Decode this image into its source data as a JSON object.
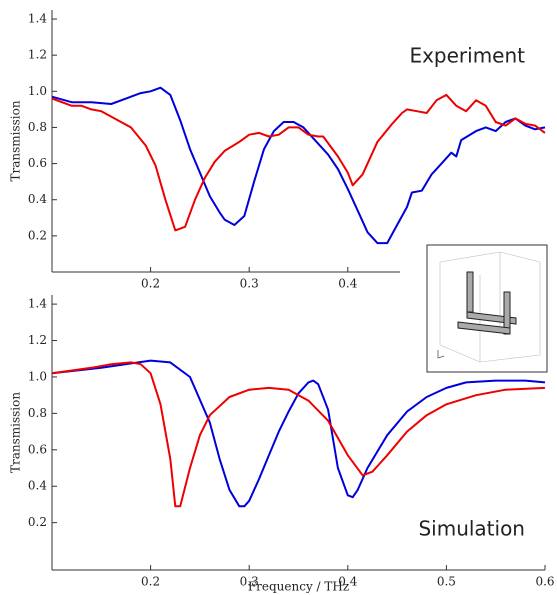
{
  "chart_data": [
    {
      "type": "line",
      "annotation": "Experiment",
      "y_label": "Transmission",
      "xlim": [
        0.1,
        0.6
      ],
      "ylim": [
        0,
        1.45
      ],
      "xticks": [
        0.2,
        0.3,
        0.4
      ],
      "yticks": [
        0.2,
        0.4,
        0.6,
        0.8,
        {
          "value": 1,
          "label": "1.0"
        },
        1.2,
        1.4
      ],
      "series": [
        {
          "color": "#0000dd",
          "x": [
            0.1,
            0.12,
            0.14,
            0.16,
            0.18,
            0.19,
            0.2,
            0.21,
            0.22,
            0.23,
            0.24,
            0.25,
            0.26,
            0.27,
            0.275,
            0.285,
            0.295,
            0.305,
            0.315,
            0.325,
            0.335,
            0.345,
            0.355,
            0.365,
            0.38,
            0.39,
            0.4,
            0.41,
            0.42,
            0.43,
            0.44,
            0.45,
            0.46,
            0.465,
            0.475,
            0.485,
            0.495,
            0.505,
            0.51,
            0.515,
            0.53,
            0.54,
            0.55,
            0.56,
            0.57,
            0.58,
            0.59,
            0.6
          ],
          "values": [
            0.97,
            0.94,
            0.94,
            0.93,
            0.97,
            0.99,
            1.0,
            1.02,
            0.98,
            0.84,
            0.68,
            0.55,
            0.42,
            0.33,
            0.29,
            0.26,
            0.31,
            0.5,
            0.68,
            0.78,
            0.83,
            0.83,
            0.8,
            0.74,
            0.65,
            0.57,
            0.46,
            0.34,
            0.22,
            0.16,
            0.16,
            0.26,
            0.36,
            0.44,
            0.45,
            0.54,
            0.6,
            0.66,
            0.64,
            0.73,
            0.78,
            0.8,
            0.78,
            0.83,
            0.85,
            0.81,
            0.79,
            0.8
          ]
        },
        {
          "color": "#ee0000",
          "x": [
            0.1,
            0.12,
            0.13,
            0.14,
            0.15,
            0.16,
            0.17,
            0.18,
            0.195,
            0.205,
            0.215,
            0.225,
            0.235,
            0.245,
            0.255,
            0.265,
            0.275,
            0.29,
            0.3,
            0.31,
            0.32,
            0.33,
            0.34,
            0.35,
            0.36,
            0.37,
            0.375,
            0.39,
            0.4,
            0.405,
            0.415,
            0.43,
            0.445,
            0.455,
            0.46,
            0.47,
            0.48,
            0.49,
            0.5,
            0.51,
            0.52,
            0.53,
            0.54,
            0.55,
            0.56,
            0.57,
            0.58,
            0.59,
            0.6
          ],
          "values": [
            0.96,
            0.92,
            0.92,
            0.9,
            0.89,
            0.86,
            0.83,
            0.8,
            0.7,
            0.59,
            0.4,
            0.23,
            0.25,
            0.4,
            0.52,
            0.61,
            0.67,
            0.72,
            0.76,
            0.77,
            0.75,
            0.76,
            0.8,
            0.8,
            0.76,
            0.75,
            0.75,
            0.64,
            0.55,
            0.48,
            0.54,
            0.72,
            0.82,
            0.88,
            0.9,
            0.89,
            0.88,
            0.95,
            0.98,
            0.92,
            0.89,
            0.95,
            0.92,
            0.83,
            0.81,
            0.85,
            0.82,
            0.81,
            0.77
          ]
        }
      ]
    },
    {
      "type": "line",
      "annotation": "Simulation",
      "y_label": "Transmission",
      "x_label": "Frequency / THz",
      "xlim": [
        0.1,
        0.6
      ],
      "ylim": [
        -0.06,
        1.45
      ],
      "xticks": [
        0.2,
        0.3,
        0.4,
        0.5,
        0.6
      ],
      "yticks": [
        0.2,
        0.4,
        0.6,
        0.8,
        {
          "value": 1,
          "label": "1.0"
        },
        1.2,
        1.4
      ],
      "series": [
        {
          "color": "#0000dd",
          "x": [
            0.1,
            0.15,
            0.2,
            0.22,
            0.24,
            0.26,
            0.27,
            0.28,
            0.29,
            0.295,
            0.3,
            0.31,
            0.32,
            0.33,
            0.34,
            0.35,
            0.36,
            0.365,
            0.37,
            0.38,
            0.39,
            0.4,
            0.405,
            0.41,
            0.42,
            0.44,
            0.46,
            0.48,
            0.5,
            0.52,
            0.55,
            0.58,
            0.6
          ],
          "values": [
            1.02,
            1.05,
            1.09,
            1.08,
            1.0,
            0.75,
            0.55,
            0.38,
            0.29,
            0.29,
            0.32,
            0.44,
            0.57,
            0.7,
            0.81,
            0.91,
            0.97,
            0.98,
            0.96,
            0.82,
            0.5,
            0.35,
            0.34,
            0.38,
            0.5,
            0.68,
            0.81,
            0.89,
            0.94,
            0.97,
            0.98,
            0.98,
            0.97
          ]
        },
        {
          "color": "#ee0000",
          "x": [
            0.1,
            0.14,
            0.16,
            0.18,
            0.19,
            0.2,
            0.21,
            0.22,
            0.225,
            0.23,
            0.24,
            0.25,
            0.26,
            0.28,
            0.3,
            0.32,
            0.34,
            0.36,
            0.38,
            0.4,
            0.415,
            0.425,
            0.44,
            0.46,
            0.48,
            0.5,
            0.53,
            0.56,
            0.6
          ],
          "values": [
            1.02,
            1.05,
            1.07,
            1.08,
            1.07,
            1.02,
            0.85,
            0.55,
            0.29,
            0.29,
            0.5,
            0.68,
            0.79,
            0.89,
            0.93,
            0.94,
            0.93,
            0.87,
            0.76,
            0.57,
            0.46,
            0.48,
            0.57,
            0.7,
            0.79,
            0.85,
            0.9,
            0.93,
            0.94
          ]
        }
      ]
    }
  ]
}
